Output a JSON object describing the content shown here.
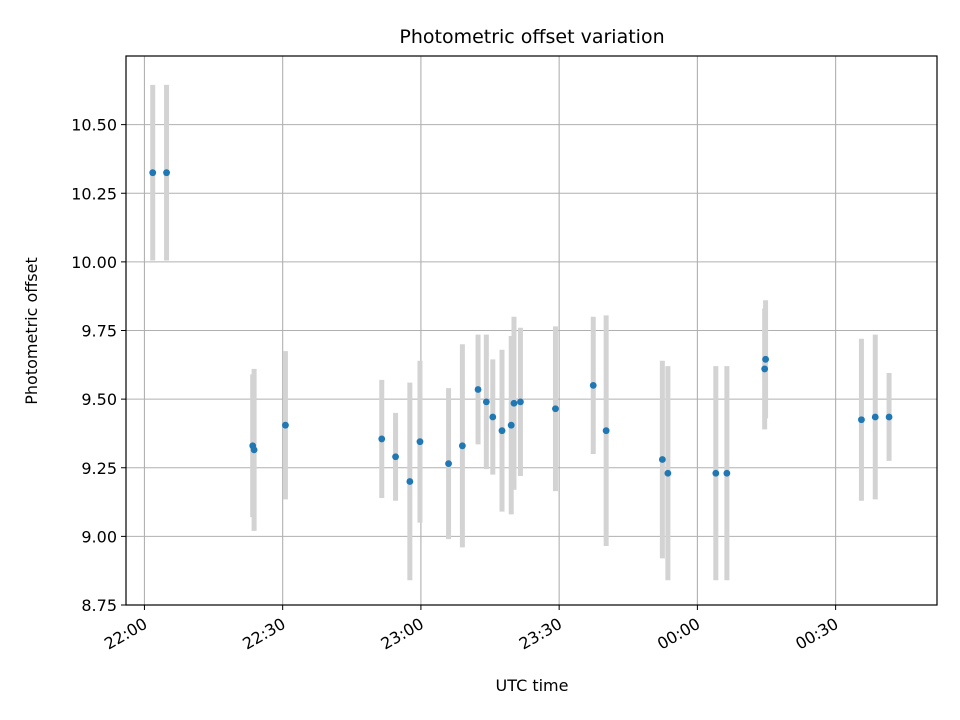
{
  "chart_data": {
    "type": "scatter",
    "title": "Photometric offset variation",
    "xlabel": "UTC time",
    "ylabel": "Photometric offset",
    "x_unit": "minutes",
    "xlim": [
      "21:56",
      "00:52"
    ],
    "ylim": [
      8.75,
      10.75
    ],
    "x_ticks": [
      {
        "time": "22:00",
        "label": "22:00"
      },
      {
        "time": "22:30",
        "label": "22:30"
      },
      {
        "time": "23:00",
        "label": "23:00"
      },
      {
        "time": "23:30",
        "label": "23:30"
      },
      {
        "time": "00:00",
        "label": "00:00"
      },
      {
        "time": "00:30",
        "label": "00:30"
      }
    ],
    "y_ticks": [
      8.75,
      9.0,
      9.25,
      9.5,
      9.75,
      10.0,
      10.25,
      10.5
    ],
    "y_tick_labels": [
      "8.75",
      "9.00",
      "9.25",
      "9.50",
      "9.75",
      "10.00",
      "10.25",
      "10.50"
    ],
    "grid": true,
    "marker_color": "#1f77b4",
    "errorbar_color": "#d3d3d3",
    "points": [
      {
        "time": "22:01.8",
        "y": 10.325,
        "yerr": 0.32
      },
      {
        "time": "22:04.8",
        "y": 10.325,
        "yerr": 0.32
      },
      {
        "time": "22:23.5",
        "y": 9.33,
        "yerr": 0.26
      },
      {
        "time": "22:23.8",
        "y": 9.315,
        "yerr": 0.295
      },
      {
        "time": "22:30.6",
        "y": 9.405,
        "yerr": 0.27
      },
      {
        "time": "22:51.5",
        "y": 9.355,
        "yerr": 0.215
      },
      {
        "time": "22:54.5",
        "y": 9.29,
        "yerr": 0.16
      },
      {
        "time": "22:57.6",
        "y": 9.2,
        "yerr": 0.36
      },
      {
        "time": "22:59.8",
        "y": 9.345,
        "yerr": 0.295
      },
      {
        "time": "23:06.0",
        "y": 9.265,
        "yerr": 0.275
      },
      {
        "time": "23:09.0",
        "y": 9.33,
        "yerr": 0.37
      },
      {
        "time": "23:12.4",
        "y": 9.535,
        "yerr": 0.2
      },
      {
        "time": "23:14.2",
        "y": 9.49,
        "yerr": 0.245
      },
      {
        "time": "23:15.6",
        "y": 9.435,
        "yerr": 0.21
      },
      {
        "time": "23:17.6",
        "y": 9.385,
        "yerr": 0.295
      },
      {
        "time": "23:19.6",
        "y": 9.405,
        "yerr": 0.325
      },
      {
        "time": "23:20.2",
        "y": 9.485,
        "yerr": 0.315
      },
      {
        "time": "23:21.6",
        "y": 9.49,
        "yerr": 0.27
      },
      {
        "time": "23:29.2",
        "y": 9.465,
        "yerr": 0.3
      },
      {
        "time": "23:37.4",
        "y": 9.55,
        "yerr": 0.25
      },
      {
        "time": "23:40.2",
        "y": 9.385,
        "yerr": 0.42
      },
      {
        "time": "23:52.4",
        "y": 9.28,
        "yerr": 0.36
      },
      {
        "time": "23:53.6",
        "y": 9.23,
        "yerr": 0.39
      },
      {
        "time": "00:04.0",
        "y": 9.23,
        "yerr": 0.39
      },
      {
        "time": "00:06.4",
        "y": 9.23,
        "yerr": 0.39
      },
      {
        "time": "00:14.6",
        "y": 9.61,
        "yerr": 0.22
      },
      {
        "time": "00:14.8",
        "y": 9.645,
        "yerr": 0.215
      },
      {
        "time": "00:35.6",
        "y": 9.425,
        "yerr": 0.295
      },
      {
        "time": "00:38.6",
        "y": 9.435,
        "yerr": 0.3
      },
      {
        "time": "00:41.6",
        "y": 9.435,
        "yerr": 0.16
      }
    ]
  }
}
